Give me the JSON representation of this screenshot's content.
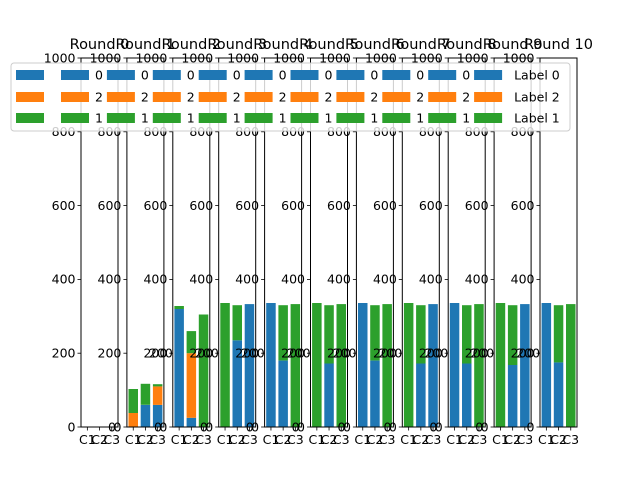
{
  "chart_data": {
    "type": "bar",
    "stacked": true,
    "grid": false,
    "ylim": [
      0,
      1000
    ],
    "yticks": [
      0,
      200,
      400,
      600,
      800,
      1000
    ],
    "categories": [
      "C1",
      "C2",
      "C3"
    ],
    "legend_labels": [
      "Label 0",
      "Label 2",
      "Label 1"
    ],
    "legend_placement": "top",
    "colors": {
      "label0": "#1f77b4",
      "label2": "#ff7f0e",
      "label1": "#2ca02c"
    },
    "panels": [
      {
        "title": "Round 0",
        "label0": [
          0,
          0,
          0
        ],
        "label2": [
          0,
          0,
          0
        ],
        "label1": [
          0,
          0,
          0
        ]
      },
      {
        "title": "Round 1",
        "label0": [
          0,
          60,
          60
        ],
        "label2": [
          38,
          0,
          50
        ],
        "label1": [
          65,
          57,
          6
        ]
      },
      {
        "title": "Round 2",
        "label0": [
          320,
          25,
          0
        ],
        "label2": [
          0,
          175,
          0
        ],
        "label1": [
          8,
          60,
          305
        ]
      },
      {
        "title": "Round 3",
        "label0": [
          0,
          235,
          333
        ],
        "label2": [
          0,
          0,
          0
        ],
        "label1": [
          336,
          95,
          0
        ]
      },
      {
        "title": "Round 4",
        "label0": [
          336,
          180,
          0
        ],
        "label2": [
          0,
          0,
          0
        ],
        "label1": [
          0,
          150,
          333
        ]
      },
      {
        "title": "Round 5",
        "label0": [
          0,
          172,
          0
        ],
        "label2": [
          0,
          0,
          0
        ],
        "label1": [
          336,
          158,
          333
        ]
      },
      {
        "title": "Round 6",
        "label0": [
          336,
          180,
          0
        ],
        "label2": [
          0,
          0,
          0
        ],
        "label1": [
          0,
          150,
          333
        ]
      },
      {
        "title": "Round 7",
        "label0": [
          0,
          172,
          333
        ],
        "label2": [
          0,
          0,
          0
        ],
        "label1": [
          336,
          158,
          0
        ]
      },
      {
        "title": "Round 8",
        "label0": [
          336,
          172,
          0
        ],
        "label2": [
          0,
          0,
          0
        ],
        "label1": [
          0,
          158,
          333
        ]
      },
      {
        "title": "Round 9",
        "label0": [
          0,
          168,
          333
        ],
        "label2": [
          0,
          0,
          0
        ],
        "label1": [
          336,
          162,
          0
        ]
      },
      {
        "title": "Round 10",
        "label0": [
          336,
          175,
          0
        ],
        "label2": [
          0,
          0,
          0
        ],
        "label1": [
          0,
          155,
          333
        ]
      }
    ],
    "zero_labels": [
      {
        "panel": 0,
        "text": "0"
      },
      {
        "panel": 1,
        "text": "0"
      },
      {
        "panel": 2,
        "text": "0"
      },
      {
        "panel": 3,
        "text": "0"
      },
      {
        "panel": 4,
        "text": "0"
      },
      {
        "panel": 5,
        "text": "0"
      },
      {
        "panel": 6,
        "text": "0"
      },
      {
        "panel": 7,
        "text": "0"
      },
      {
        "panel": 8,
        "text": "0"
      }
    ],
    "mid_labels": [
      {
        "panel": 1,
        "text": "200"
      },
      {
        "panel": 2,
        "text": "200"
      },
      {
        "panel": 3,
        "text": "200"
      },
      {
        "panel": 4,
        "text": "200"
      },
      {
        "panel": 5,
        "text": "200"
      },
      {
        "panel": 6,
        "text": "200"
      },
      {
        "panel": 7,
        "text": "200"
      },
      {
        "panel": 8,
        "text": "200"
      },
      {
        "panel": 9,
        "text": "200"
      }
    ],
    "overlapping_legend_fragments": [
      {
        "panel": 1,
        "texts": [
          "0",
          "2",
          "1"
        ]
      },
      {
        "panel": 2,
        "texts": [
          "0",
          "2",
          "1"
        ]
      },
      {
        "panel": 3,
        "texts": [
          "0",
          "2",
          "1"
        ]
      },
      {
        "panel": 4,
        "texts": [
          "0",
          "2",
          "1"
        ]
      },
      {
        "panel": 5,
        "texts": [
          "0",
          "2",
          "1"
        ]
      },
      {
        "panel": 6,
        "texts": [
          "0",
          "2",
          "1"
        ]
      },
      {
        "panel": 7,
        "texts": [
          "0",
          "2",
          "1"
        ]
      },
      {
        "panel": 8,
        "texts": [
          "0",
          "2",
          "1"
        ]
      },
      {
        "panel": 9,
        "texts": [
          "0",
          "2",
          "1"
        ]
      }
    ]
  }
}
